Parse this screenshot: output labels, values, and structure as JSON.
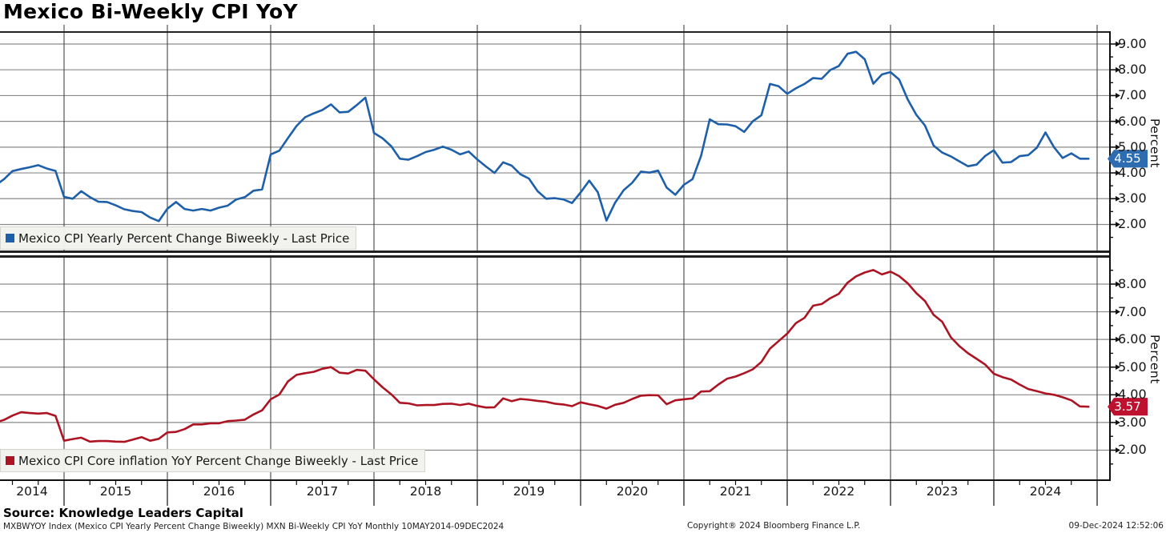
{
  "title": "Mexico Bi-Weekly CPI YoY",
  "x_axis": {
    "years": [
      "2014",
      "2015",
      "2016",
      "2017",
      "2018",
      "2019",
      "2020",
      "2021",
      "2022",
      "2023",
      "2024"
    ]
  },
  "footer": {
    "source": "Source: Knowledge Leaders Capital",
    "description": "MXBWYOY Index (Mexico CPI Yearly Percent Change Biweekly) MXN Bi-Weekly CPI YoY  Monthly 10MAY2014-09DEC2024",
    "copyright": "Copyright® 2024 Bloomberg Finance L.P.",
    "timestamp": "09-Dec-2024 12:52:06"
  },
  "colors": {
    "grid_horizontal": "#8a8a8a",
    "grid_vertical": "#454545",
    "axis": "#1c1c1c",
    "headline_blue": "#1e5fa9",
    "core_red": "#ad1423"
  },
  "chart_data": {
    "type": "line",
    "x_unit": "month",
    "x_start": "2014-05",
    "x_end": "2024-12",
    "x_range_label": "10MAY2014-09DEC2024",
    "grid": true,
    "panels": [
      {
        "name": "headline",
        "legend": "Mexico CPI Yearly Percent Change Biweekly - Last Price",
        "ylabel": "Percent",
        "ylim": [
          0.9,
          9.5
        ],
        "yticks": [
          9,
          8,
          7,
          6,
          5,
          4,
          3,
          2
        ],
        "ytick_labels": [
          "9.00",
          "8.00",
          "7.00",
          "6.00",
          "5.00",
          "4.00",
          "3.00",
          "2.00"
        ],
        "last_price": 4.55,
        "last_price_label": "4.55",
        "color": "#1e5fa9",
        "tag_bg": "#2e6cb2",
        "values": [
          3.51,
          3.75,
          4.07,
          4.15,
          4.22,
          4.3,
          4.17,
          4.08,
          3.07,
          3.0,
          3.29,
          3.06,
          2.88,
          2.87,
          2.74,
          2.59,
          2.52,
          2.48,
          2.27,
          2.13,
          2.61,
          2.87,
          2.6,
          2.54,
          2.6,
          2.54,
          2.65,
          2.73,
          2.97,
          3.06,
          3.31,
          3.36,
          4.72,
          4.86,
          5.35,
          5.82,
          6.16,
          6.31,
          6.44,
          6.66,
          6.35,
          6.37,
          6.63,
          6.92,
          5.55,
          5.34,
          5.04,
          4.55,
          4.51,
          4.65,
          4.81,
          4.9,
          5.02,
          4.9,
          4.72,
          4.83,
          4.52,
          4.25,
          4.0,
          4.41,
          4.28,
          3.95,
          3.78,
          3.29,
          3.0,
          3.02,
          2.97,
          2.83,
          3.24,
          3.7,
          3.25,
          2.15,
          2.84,
          3.33,
          3.62,
          4.05,
          4.01,
          4.09,
          3.43,
          3.15,
          3.54,
          3.76,
          4.67,
          6.08,
          5.89,
          5.88,
          5.81,
          5.59,
          6.0,
          6.24,
          7.45,
          7.36,
          7.07,
          7.28,
          7.45,
          7.68,
          7.65,
          7.99,
          8.15,
          8.62,
          8.7,
          8.41,
          7.46,
          7.82,
          7.91,
          7.62,
          6.85,
          6.25,
          5.84,
          5.06,
          4.79,
          4.64,
          4.45,
          4.26,
          4.32,
          4.66,
          4.88,
          4.4,
          4.42,
          4.65,
          4.69,
          4.98,
          5.57,
          4.99,
          4.58,
          4.76,
          4.55,
          4.55
        ]
      },
      {
        "name": "core",
        "legend": "Mexico CPI Core inflation YoY Percent Change Biweekly - Last Price",
        "ylabel": "Percent",
        "ylim": [
          0.9,
          8.95
        ],
        "yticks": [
          8,
          7,
          6,
          5,
          4,
          3,
          2
        ],
        "ytick_labels": [
          "8.00",
          "7.00",
          "6.00",
          "5.00",
          "4.00",
          "3.00",
          "2.00"
        ],
        "last_price": 3.57,
        "last_price_label": "3.57",
        "color": "#ad1423",
        "tag_bg": "#be1130",
        "values": [
          3.0,
          3.09,
          3.25,
          3.37,
          3.34,
          3.32,
          3.34,
          3.24,
          2.34,
          2.4,
          2.45,
          2.31,
          2.33,
          2.33,
          2.31,
          2.3,
          2.38,
          2.47,
          2.34,
          2.41,
          2.64,
          2.66,
          2.76,
          2.93,
          2.93,
          2.97,
          2.97,
          3.05,
          3.07,
          3.1,
          3.29,
          3.44,
          3.84,
          4.01,
          4.48,
          4.72,
          4.78,
          4.83,
          4.94,
          5.0,
          4.8,
          4.77,
          4.9,
          4.87,
          4.56,
          4.27,
          4.02,
          3.71,
          3.69,
          3.62,
          3.63,
          3.63,
          3.67,
          3.68,
          3.63,
          3.68,
          3.6,
          3.54,
          3.55,
          3.87,
          3.77,
          3.85,
          3.82,
          3.78,
          3.75,
          3.68,
          3.65,
          3.59,
          3.73,
          3.66,
          3.6,
          3.5,
          3.64,
          3.71,
          3.85,
          3.97,
          3.99,
          3.98,
          3.66,
          3.8,
          3.84,
          3.87,
          4.12,
          4.13,
          4.37,
          4.58,
          4.66,
          4.78,
          4.92,
          5.19,
          5.67,
          5.94,
          6.21,
          6.59,
          6.78,
          7.22,
          7.28,
          7.49,
          7.65,
          8.05,
          8.28,
          8.42,
          8.51,
          8.35,
          8.45,
          8.29,
          8.03,
          7.67,
          7.39,
          6.89,
          6.64,
          6.08,
          5.76,
          5.5,
          5.3,
          5.09,
          4.76,
          4.64,
          4.55,
          4.37,
          4.21,
          4.13,
          4.05,
          4.0,
          3.91,
          3.8,
          3.58,
          3.57
        ]
      }
    ]
  }
}
